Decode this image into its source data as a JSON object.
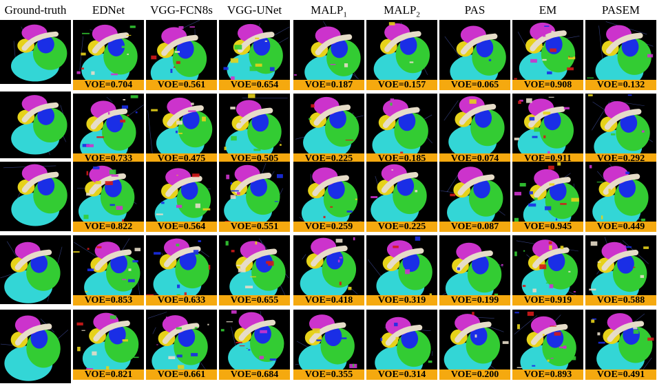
{
  "columns": [
    {
      "label": "Ground-truth",
      "sub": ""
    },
    {
      "label": "EDNet",
      "sub": ""
    },
    {
      "label": "VGG-FCN8s",
      "sub": ""
    },
    {
      "label": "VGG-UNet",
      "sub": ""
    },
    {
      "label": "MALP",
      "sub": "1"
    },
    {
      "label": "MALP",
      "sub": "2"
    },
    {
      "label": "PAS",
      "sub": ""
    },
    {
      "label": "EM",
      "sub": ""
    },
    {
      "label": "PASEM",
      "sub": ""
    }
  ],
  "rows": [
    {
      "voe": [
        "VOE=0.704",
        "VOE=0.561",
        "VOE=0.654",
        "VOE=0.187",
        "VOE=0.157",
        "VOE=0.065",
        "VOE=0.908",
        "VOE=0.132"
      ]
    },
    {
      "voe": [
        "VOE=0.733",
        "VOE=0.475",
        "VOE=0.505",
        "VOE=0.225",
        "VOE=0.185",
        "VOE=0.074",
        "VOE=0.911",
        "VOE=0.292"
      ]
    },
    {
      "voe": [
        "VOE=0.822",
        "VOE=0.564",
        "VOE=0.551",
        "VOE=0.259",
        "VOE=0.225",
        "VOE=0.087",
        "VOE=0.945",
        "VOE=0.449"
      ]
    },
    {
      "voe": [
        "VOE=0.853",
        "VOE=0.633",
        "VOE=0.655",
        "VOE=0.418",
        "VOE=0.319",
        "VOE=0.199",
        "VOE=0.919",
        "VOE=0.588"
      ]
    },
    {
      "voe": [
        "VOE=0.821",
        "VOE=0.661",
        "VOE=0.684",
        "VOE=0.355",
        "VOE=0.314",
        "VOE=0.200",
        "VOE=0.893",
        "VOE=0.491"
      ]
    }
  ],
  "colors": {
    "cyan": "#33d6d6",
    "green": "#33cc33",
    "blue": "#1a2ee6",
    "yellow": "#e6d21a",
    "magenta": "#cc33cc",
    "bone": "#e6dcc8",
    "red": "#d21a1a",
    "label_bg": "#f5a90f"
  }
}
